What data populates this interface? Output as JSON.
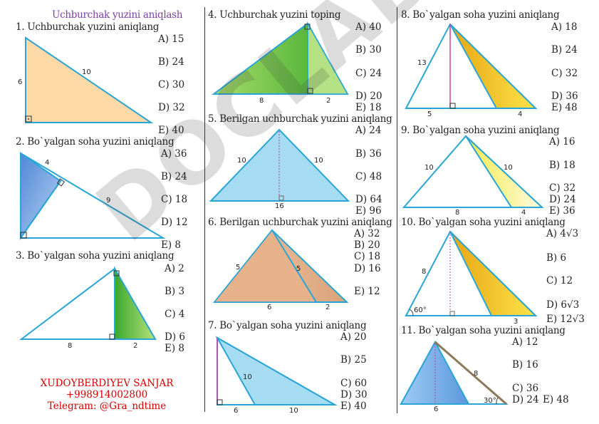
{
  "header": {
    "title": "Uchburchak yuzini aniqlash"
  },
  "problems": [
    {
      "title": "1. Uchburchak yuzini aniqlang",
      "labels": [
        "6",
        "10"
      ],
      "options": [
        "A) 15",
        "B) 24",
        "C) 30",
        "D) 32",
        "E) 40"
      ]
    },
    {
      "title": "2. Bo`yalgan soha yuzini aniqlang",
      "labels": [
        "4",
        "9"
      ],
      "options": [
        "A) 36",
        "B) 24",
        "C) 18",
        "D) 12",
        "E) 8"
      ]
    },
    {
      "title": "3. Bo`yalgan soha yuzini aniqlang",
      "labels": [
        "8",
        "2"
      ],
      "options": [
        "A) 2",
        "B) 3",
        "C) 4",
        "D) 6",
        "E) 8"
      ]
    },
    {
      "title": "4. Uchburchak yuzini toping",
      "labels": [
        "8",
        "2"
      ],
      "options": [
        "A) 40",
        "B) 30",
        "C) 24",
        "D) 20",
        "E) 18"
      ]
    },
    {
      "title": "5. Berilgan uchburchak yuzini aniqlang",
      "labels": [
        "10",
        "10",
        "16"
      ],
      "options": [
        "A) 24",
        "B) 36",
        "C) 48",
        "D) 64",
        "E) 96"
      ]
    },
    {
      "title": "6. Berilgan uchburchak yuzini aniqlang",
      "labels": [
        "5",
        "5",
        "6",
        "2"
      ],
      "options": [
        "A) 32",
        "B) 20",
        "C) 18",
        "D) 16",
        "E) 12"
      ]
    },
    {
      "title": "7. Bo`yalgan soha yuzini aniqlang",
      "labels": [
        "10",
        "6",
        "10"
      ],
      "options": [
        "A) 20",
        "B) 25",
        "C) 60",
        "D) 30",
        "E) 40"
      ]
    },
    {
      "title": "8. Bo`yalgan soha yuzini aniqlang",
      "labels": [
        "13",
        "5",
        "4"
      ],
      "options": [
        "A) 18",
        "B) 24",
        "C) 32",
        "D) 36",
        "E) 48"
      ]
    },
    {
      "title": "9. Bo`yalgan soha yuzini aniqlang",
      "labels": [
        "10",
        "10",
        "8",
        "4"
      ],
      "options": [
        "A) 16",
        "B) 18",
        "C) 32",
        "D) 24",
        "E) 36"
      ]
    },
    {
      "title": "10. Bo`yalgan soha yuzini aniqlang",
      "labels": [
        "8",
        "60°",
        "3"
      ],
      "options": [
        "A) 4√3",
        "B) 6",
        "C) 12",
        "D) 6√3",
        "E) 12√3"
      ]
    },
    {
      "title": "11. Bo`yalgan soha yuzini aniqlang",
      "labels": [
        "8",
        "6",
        "30°"
      ],
      "options": [
        "A) 12",
        "B) 16",
        "C) 36",
        "D) 24",
        "E) 48"
      ]
    }
  ],
  "author": {
    "name": "XUDOYBERDIYEV SANJAR",
    "phone": "+998914002800",
    "telegram": "Telegram: @Gra_ndtime"
  },
  "watermark": "DOCLAB.UZ",
  "colors": {
    "title": "#7b3fa0",
    "author": "#d40000",
    "line": "#2aa6d6",
    "peach": "#fcd9a6",
    "blue": "#6fa3dd",
    "green": "#6cbf3a",
    "lightblue": "#a5dcf2",
    "brown": "#e7b28a",
    "yellow": "#f2c01b",
    "height": "#d63ba0"
  }
}
